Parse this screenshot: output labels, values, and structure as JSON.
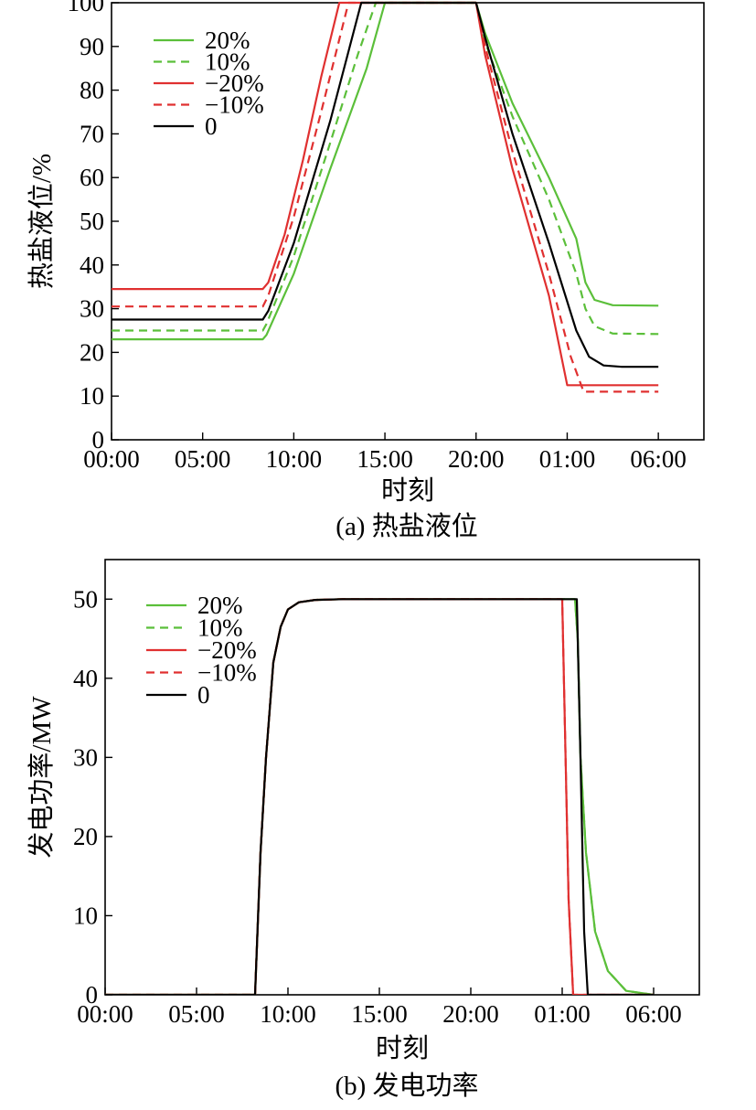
{
  "chart_data": [
    {
      "id": "a",
      "type": "line",
      "caption": "(a) 热盐液位",
      "xlabel": "时刻",
      "ylabel": "热盐液位/%",
      "xticks": [
        "00:00",
        "05:00",
        "10:00",
        "15:00",
        "20:00",
        "01:00",
        "06:00"
      ],
      "yticks": [
        0,
        10,
        20,
        30,
        40,
        50,
        60,
        70,
        80,
        90,
        100
      ],
      "xlim": [
        0,
        32.5
      ],
      "ylim": [
        0,
        100
      ],
      "x_unit": "hours since 00:00 start (30 = 06:00 next day)",
      "grid": false,
      "legend_position": "top-left",
      "series": [
        {
          "name": "20%",
          "color": "#5bbf3a",
          "dash": "solid",
          "points": [
            [
              0,
              23
            ],
            [
              8.3,
              23
            ],
            [
              8.5,
              24
            ],
            [
              10,
              38
            ],
            [
              12,
              62
            ],
            [
              14,
              85
            ],
            [
              15,
              100
            ],
            [
              20,
              100
            ],
            [
              20.5,
              93
            ],
            [
              22,
              77
            ],
            [
              24,
              60
            ],
            [
              25.5,
              46
            ],
            [
              26,
              36
            ],
            [
              26.5,
              32
            ],
            [
              27.5,
              30.8
            ],
            [
              30,
              30.7
            ]
          ]
        },
        {
          "name": "10%",
          "color": "#5bbf3a",
          "dash": "dashed",
          "points": [
            [
              0,
              25
            ],
            [
              8.3,
              25
            ],
            [
              8.5,
              26.5
            ],
            [
              10,
              42
            ],
            [
              12,
              68
            ],
            [
              13.5,
              88
            ],
            [
              14.5,
              100
            ],
            [
              20,
              100
            ],
            [
              20.5,
              91
            ],
            [
              22,
              74
            ],
            [
              24,
              55
            ],
            [
              25.5,
              38
            ],
            [
              26,
              30
            ],
            [
              26.5,
              26
            ],
            [
              27.5,
              24.3
            ],
            [
              30,
              24.2
            ]
          ]
        },
        {
          "name": "−20%",
          "color": "#e03030",
          "dash": "solid",
          "points": [
            [
              0,
              34.5
            ],
            [
              8.3,
              34.5
            ],
            [
              8.6,
              36
            ],
            [
              9.5,
              47
            ],
            [
              10.5,
              64
            ],
            [
              11.5,
              83
            ],
            [
              12.5,
              100
            ],
            [
              20,
              100
            ],
            [
              20.5,
              88
            ],
            [
              22,
              62
            ],
            [
              24,
              33
            ],
            [
              25,
              12.5
            ],
            [
              30,
              12.5
            ]
          ]
        },
        {
          "name": "−10%",
          "color": "#e03030",
          "dash": "dashed",
          "points": [
            [
              0,
              30.5
            ],
            [
              8.3,
              30.5
            ],
            [
              8.6,
              33
            ],
            [
              10,
              51
            ],
            [
              11.5,
              75
            ],
            [
              13,
              100
            ],
            [
              20,
              100
            ],
            [
              20.5,
              90
            ],
            [
              22,
              66
            ],
            [
              24,
              38
            ],
            [
              25.2,
              19
            ],
            [
              25.9,
              11
            ],
            [
              30,
              11
            ]
          ]
        },
        {
          "name": "0",
          "color": "#000000",
          "dash": "solid",
          "points": [
            [
              0,
              27.5
            ],
            [
              8.3,
              27.5
            ],
            [
              8.6,
              29.5
            ],
            [
              10,
              45
            ],
            [
              12,
              73
            ],
            [
              13.7,
              100
            ],
            [
              20,
              100
            ],
            [
              20.5,
              92
            ],
            [
              22,
              70
            ],
            [
              24,
              45
            ],
            [
              25.5,
              25
            ],
            [
              26.2,
              19
            ],
            [
              27,
              17
            ],
            [
              28,
              16.7
            ],
            [
              30,
              16.7
            ]
          ]
        }
      ]
    },
    {
      "id": "b",
      "type": "line",
      "caption": "(b) 发电功率",
      "xlabel": "时刻",
      "ylabel": "发电功率/MW",
      "xticks": [
        "00:00",
        "05:00",
        "10:00",
        "15:00",
        "20:00",
        "01:00",
        "06:00"
      ],
      "yticks": [
        0,
        10,
        20,
        30,
        40,
        50
      ],
      "xlim": [
        0,
        32.5
      ],
      "ylim": [
        0,
        55
      ],
      "x_unit": "hours since 00:00 start (30 = 06:00 next day)",
      "grid": false,
      "legend_position": "top-left",
      "series": [
        {
          "name": "20%",
          "color": "#5bbf3a",
          "dash": "solid",
          "points": [
            [
              0,
              0
            ],
            [
              8.2,
              0
            ],
            [
              8.5,
              18
            ],
            [
              8.8,
              30
            ],
            [
              9.2,
              42
            ],
            [
              9.6,
              46.5
            ],
            [
              10,
              48.7
            ],
            [
              10.6,
              49.6
            ],
            [
              11.5,
              49.9
            ],
            [
              13,
              50
            ],
            [
              25.7,
              50
            ],
            [
              25.85,
              45
            ],
            [
              26,
              30
            ],
            [
              26.3,
              18
            ],
            [
              26.8,
              8
            ],
            [
              27.5,
              3
            ],
            [
              28.5,
              0.5
            ],
            [
              30,
              0
            ]
          ]
        },
        {
          "name": "10%",
          "color": "#5bbf3a",
          "dash": "dashed",
          "points": [
            [
              0,
              0
            ],
            [
              8.2,
              0
            ],
            [
              8.5,
              18
            ],
            [
              8.8,
              30
            ],
            [
              9.2,
              42
            ],
            [
              9.6,
              46.5
            ],
            [
              10,
              48.7
            ],
            [
              10.6,
              49.6
            ],
            [
              11.5,
              49.9
            ],
            [
              13,
              50
            ],
            [
              25.7,
              50
            ],
            [
              25.85,
              45
            ],
            [
              26,
              30
            ],
            [
              26.3,
              18
            ],
            [
              26.8,
              8
            ],
            [
              27.5,
              3
            ],
            [
              28.5,
              0.5
            ],
            [
              30,
              0
            ]
          ]
        },
        {
          "name": "−20%",
          "color": "#e03030",
          "dash": "solid",
          "points": [
            [
              0,
              0
            ],
            [
              8.2,
              0
            ],
            [
              8.5,
              18
            ],
            [
              8.8,
              30
            ],
            [
              9.2,
              42
            ],
            [
              9.6,
              46.5
            ],
            [
              10,
              48.7
            ],
            [
              10.6,
              49.6
            ],
            [
              11.5,
              49.9
            ],
            [
              13,
              50
            ],
            [
              25,
              50
            ],
            [
              25.35,
              12
            ],
            [
              25.6,
              0
            ],
            [
              30,
              0
            ]
          ]
        },
        {
          "name": "−10%",
          "color": "#e03030",
          "dash": "dashed",
          "points": [
            [
              0,
              0
            ],
            [
              8.2,
              0
            ],
            [
              8.5,
              18
            ],
            [
              8.8,
              30
            ],
            [
              9.2,
              42
            ],
            [
              9.6,
              46.5
            ],
            [
              10,
              48.7
            ],
            [
              10.6,
              49.6
            ],
            [
              11.5,
              49.9
            ],
            [
              13,
              50
            ],
            [
              25,
              50
            ],
            [
              25.35,
              12
            ],
            [
              25.6,
              0
            ],
            [
              30,
              0
            ]
          ]
        },
        {
          "name": "0",
          "color": "#000000",
          "dash": "solid",
          "points": [
            [
              0,
              0
            ],
            [
              8.2,
              0
            ],
            [
              8.5,
              18
            ],
            [
              8.8,
              30
            ],
            [
              9.2,
              42
            ],
            [
              9.6,
              46.5
            ],
            [
              10,
              48.7
            ],
            [
              10.6,
              49.6
            ],
            [
              11.5,
              49.9
            ],
            [
              13,
              50
            ],
            [
              25.8,
              50
            ],
            [
              26,
              30
            ],
            [
              26.2,
              8
            ],
            [
              26.4,
              0
            ],
            [
              30,
              0
            ]
          ]
        }
      ]
    }
  ]
}
